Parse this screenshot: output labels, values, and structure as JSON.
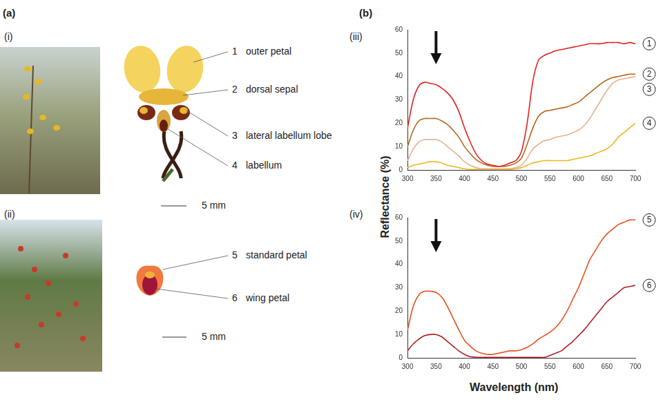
{
  "figure": {
    "panel_a": "(a)",
    "panel_b": "(b)",
    "ylabel": "Reflectance (%)",
    "xlabel": "Wavelength (nm)"
  },
  "diagrams": [
    {
      "label": "(i)",
      "parts": [
        {
          "id": 1,
          "text": "outer petal"
        },
        {
          "id": 2,
          "text": "dorsal sepal"
        },
        {
          "id": 3,
          "text": "lateral labellum lobe"
        },
        {
          "id": 4,
          "text": "labellum"
        }
      ],
      "scale": "5 mm"
    },
    {
      "label": "(ii)",
      "parts": [
        {
          "id": 5,
          "text": "standard petal"
        },
        {
          "id": 6,
          "text": "wing petal"
        }
      ],
      "scale": "5 mm"
    }
  ],
  "chart_data": [
    {
      "type": "line",
      "title": "(iii)",
      "x": [
        300,
        310,
        320,
        330,
        340,
        350,
        360,
        370,
        380,
        390,
        400,
        410,
        420,
        430,
        440,
        450,
        460,
        470,
        480,
        490,
        500,
        510,
        520,
        530,
        540,
        550,
        560,
        570,
        580,
        590,
        600,
        610,
        620,
        630,
        640,
        650,
        660,
        670,
        680,
        690,
        700
      ],
      "series": [
        {
          "name": "1",
          "color": "#e3211c",
          "values": [
            18,
            30,
            36,
            37.5,
            37,
            36.5,
            35,
            33,
            30,
            25,
            18,
            12,
            7,
            4,
            2.5,
            2,
            1.5,
            2,
            3,
            4,
            8,
            20,
            38,
            47,
            49,
            50,
            51,
            51.5,
            52,
            52.5,
            53,
            53.5,
            54,
            54,
            54,
            54.5,
            54.5,
            54.5,
            54,
            54.5,
            54
          ]
        },
        {
          "name": "2",
          "color": "#b8651b",
          "values": [
            10,
            17,
            21,
            22,
            22,
            22,
            21,
            19.5,
            17,
            14,
            10,
            7,
            4.5,
            3,
            2,
            1.5,
            1.5,
            1.5,
            2,
            3,
            5,
            11,
            18,
            23,
            25,
            25.5,
            26,
            26.5,
            27,
            28,
            29,
            31,
            33,
            35,
            37,
            38.5,
            39.5,
            40,
            40.5,
            41,
            41
          ]
        },
        {
          "name": "3",
          "color": "#e8b08c",
          "values": [
            4,
            9,
            12,
            13,
            13,
            13,
            12,
            10,
            8,
            6,
            3.5,
            2,
            1,
            0.5,
            0.5,
            0.5,
            0.5,
            0.5,
            0.5,
            1,
            2,
            5,
            9,
            11,
            12.5,
            13,
            14,
            14.5,
            15,
            16,
            17,
            19,
            22,
            26,
            30,
            34,
            37,
            38.5,
            39,
            39.5,
            40
          ]
        },
        {
          "name": "4",
          "color": "#e8b820",
          "values": [
            1,
            2,
            2.5,
            3,
            3.5,
            3.5,
            3,
            2,
            1.5,
            1,
            0.5,
            0.2,
            0.2,
            0.2,
            0.2,
            0.2,
            0.2,
            0.2,
            0.2,
            0.5,
            1,
            2,
            3,
            3.5,
            4,
            4,
            4,
            4,
            4,
            4.5,
            5,
            5.5,
            6,
            7,
            8,
            9,
            11,
            14,
            16,
            18,
            20
          ]
        }
      ],
      "xlim": [
        300,
        700
      ],
      "xticks": [
        300,
        350,
        400,
        450,
        500,
        550,
        600,
        650,
        700
      ],
      "ylim": [
        0,
        60
      ],
      "yticks": [
        0,
        10,
        20,
        30,
        40,
        50,
        60
      ],
      "grid": false,
      "arrow_at": 350
    },
    {
      "type": "line",
      "title": "(iv)",
      "x": [
        300,
        310,
        320,
        330,
        340,
        350,
        360,
        370,
        380,
        390,
        400,
        410,
        420,
        430,
        440,
        450,
        460,
        470,
        480,
        490,
        500,
        510,
        520,
        530,
        540,
        550,
        560,
        570,
        580,
        590,
        600,
        610,
        620,
        630,
        640,
        650,
        660,
        670,
        680,
        690,
        700
      ],
      "series": [
        {
          "name": "5",
          "color": "#e8501e",
          "values": [
            12,
            22,
            27,
            28.5,
            28.5,
            28,
            26,
            22,
            17,
            12,
            7.5,
            5,
            3,
            2,
            1.5,
            1.5,
            2,
            2.5,
            3,
            3,
            3.5,
            4.5,
            6,
            8,
            9.5,
            11,
            13,
            16,
            20,
            25,
            30,
            36,
            42,
            46,
            50,
            53,
            55,
            57,
            58,
            59,
            59
          ]
        },
        {
          "name": "6",
          "color": "#b01e24",
          "values": [
            3,
            6,
            8,
            9.5,
            10,
            10,
            9,
            7,
            5,
            3,
            1.5,
            0.5,
            0.3,
            0.2,
            0.2,
            0.2,
            0.2,
            0.2,
            0.2,
            0.2,
            0.2,
            0.2,
            0.2,
            0.2,
            0.2,
            1,
            2,
            3,
            5,
            7,
            9.5,
            12,
            15,
            18,
            21,
            24,
            26,
            28,
            30,
            30.5,
            31
          ]
        }
      ],
      "xlim": [
        300,
        700
      ],
      "xticks": [
        300,
        350,
        400,
        450,
        500,
        550,
        600,
        650,
        700
      ],
      "ylim": [
        0,
        60
      ],
      "yticks": [
        0,
        10,
        20,
        30,
        40,
        50,
        60
      ],
      "grid": false,
      "arrow_at": 350
    }
  ]
}
